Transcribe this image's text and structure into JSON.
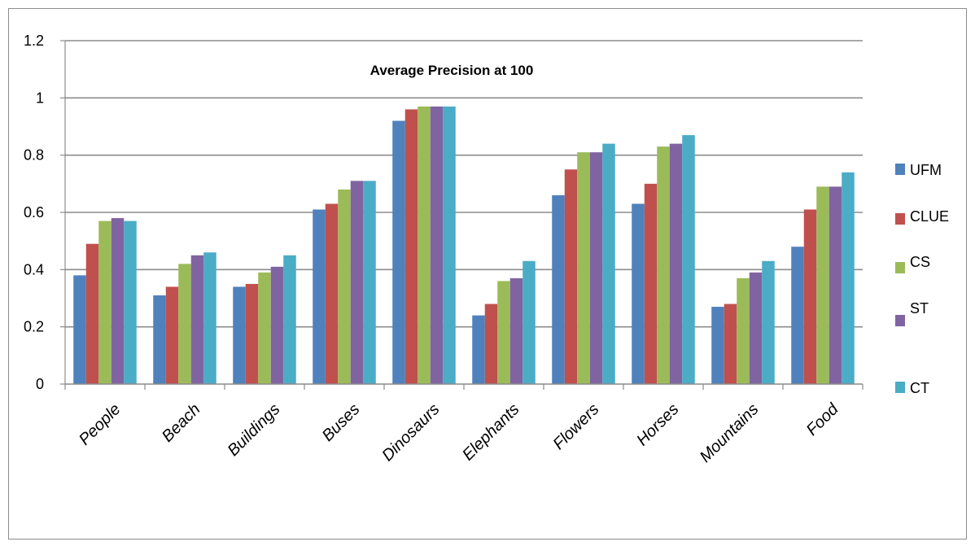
{
  "chart_data": {
    "type": "bar",
    "title": "Average Precision at 100",
    "categories": [
      "People",
      "Beach",
      "Buildings",
      "Buses",
      "Dinosaurs",
      "Elephants",
      "Flowers",
      "Horses",
      "Mountains",
      "Food"
    ],
    "series": [
      {
        "name": "UFM",
        "color": "#4f81bd",
        "values": [
          0.38,
          0.31,
          0.34,
          0.61,
          0.92,
          0.24,
          0.66,
          0.63,
          0.27,
          0.48
        ]
      },
      {
        "name": "CLUE",
        "color": "#c0504d",
        "values": [
          0.49,
          0.34,
          0.35,
          0.63,
          0.96,
          0.28,
          0.75,
          0.7,
          0.28,
          0.61
        ]
      },
      {
        "name": "CS",
        "color": "#9bbb59",
        "values": [
          0.57,
          0.42,
          0.39,
          0.68,
          0.97,
          0.36,
          0.81,
          0.83,
          0.37,
          0.69
        ]
      },
      {
        "name": "ST",
        "color": "#8064a2",
        "values": [
          0.58,
          0.45,
          0.41,
          0.71,
          0.97,
          0.37,
          0.81,
          0.84,
          0.39,
          0.69
        ]
      },
      {
        "name": "CT",
        "color": "#4bacc6",
        "values": [
          0.57,
          0.46,
          0.45,
          0.71,
          0.97,
          0.43,
          0.84,
          0.87,
          0.43,
          0.74
        ]
      }
    ],
    "yticks": [
      "0",
      "0.2",
      "0.4",
      "0.6",
      "0.8",
      "1",
      "1.2"
    ],
    "ylim": [
      0,
      1.2
    ],
    "xlabel": "",
    "ylabel": "",
    "grid": true,
    "legend_position": "right"
  }
}
